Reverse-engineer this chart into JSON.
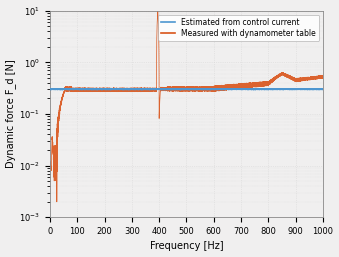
{
  "xlabel": "Frequency [Hz]",
  "ylabel": "Dynamic force F_d [N]",
  "xlim": [
    0,
    1000
  ],
  "ylim": [
    0.001,
    10
  ],
  "xticks": [
    0,
    100,
    200,
    300,
    400,
    500,
    600,
    700,
    800,
    900,
    1000
  ],
  "legend": [
    "Estimated from control current",
    "Measured with dynamometer table"
  ],
  "line_blue": "#4d96d0",
  "line_orange": "#d9541a",
  "bg_color": "#f0efef",
  "grid_color": "#d8d8d8",
  "blue_value": 0.3,
  "figsize": [
    3.39,
    2.57
  ],
  "dpi": 100
}
